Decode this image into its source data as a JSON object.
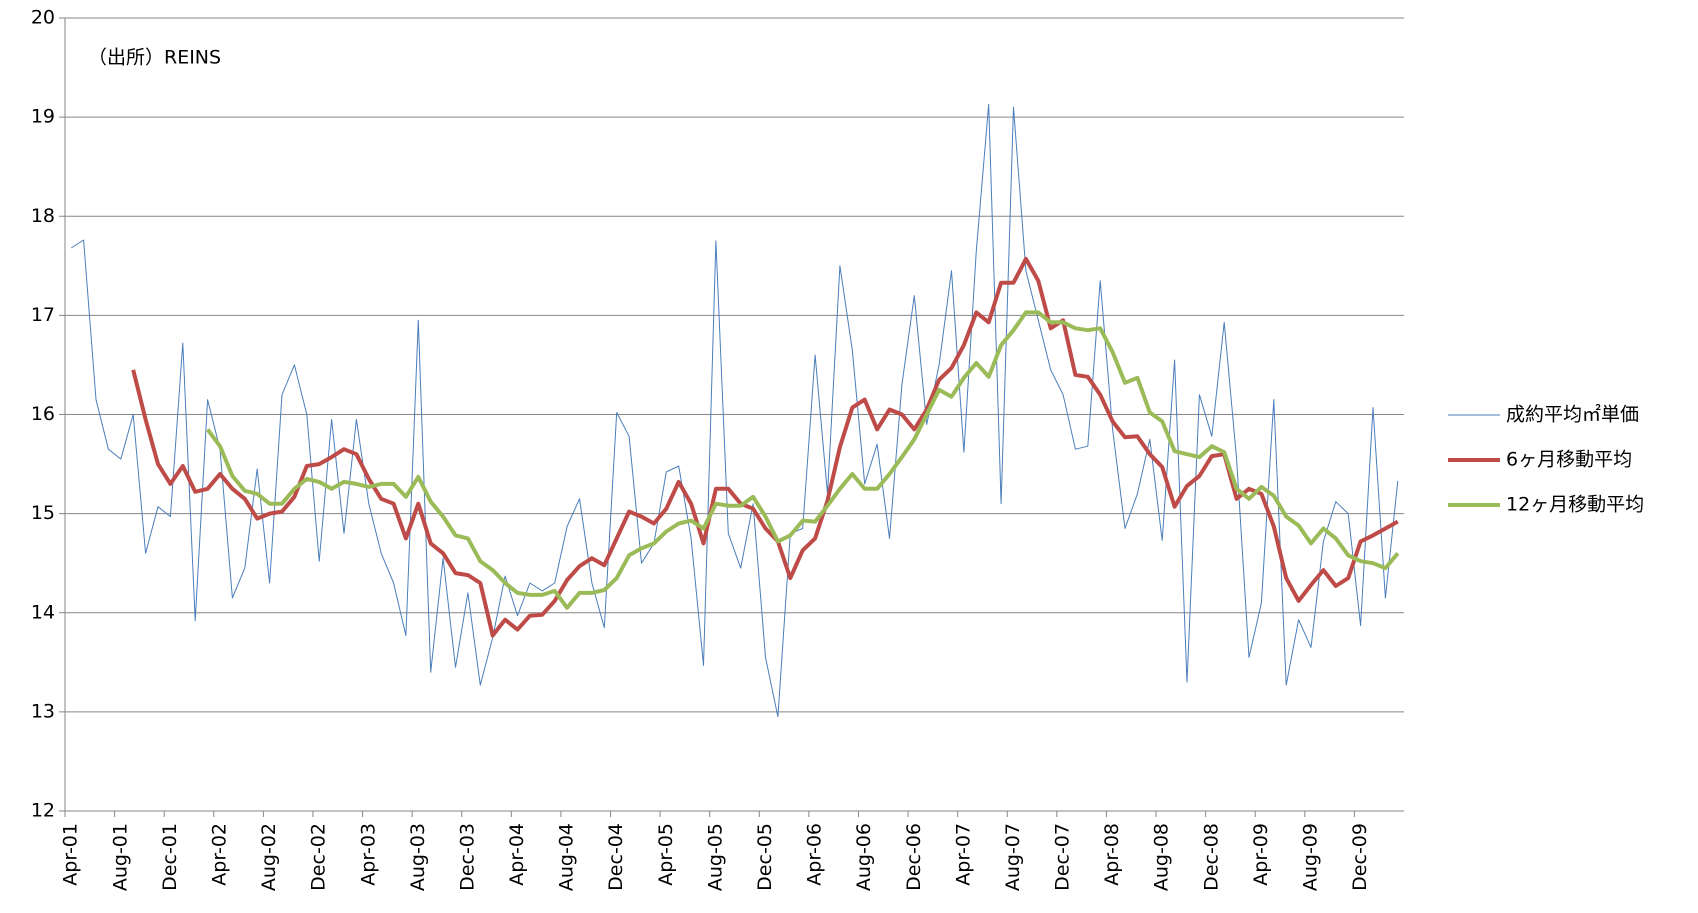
{
  "chart_data": {
    "type": "line",
    "annotation": "（出所）REINS",
    "categories": [
      "Apr-01",
      null,
      null,
      null,
      "Aug-01",
      null,
      null,
      null,
      "Dec-01",
      null,
      null,
      null,
      "Apr-02",
      null,
      null,
      null,
      "Aug-02",
      null,
      null,
      null,
      "Dec-02",
      null,
      null,
      null,
      "Apr-03",
      null,
      null,
      null,
      "Aug-03",
      null,
      null,
      null,
      "Dec-03",
      null,
      null,
      null,
      "Apr-04",
      null,
      null,
      null,
      "Aug-04",
      null,
      null,
      null,
      "Dec-04",
      null,
      null,
      null,
      "Apr-05",
      null,
      null,
      null,
      "Aug-05",
      null,
      null,
      null,
      "Dec-05",
      null,
      null,
      null,
      "Apr-06",
      null,
      null,
      null,
      "Aug-06",
      null,
      null,
      null,
      "Dec-06",
      null,
      null,
      null,
      "Apr-07",
      null,
      null,
      null,
      "Aug-07",
      null,
      null,
      null,
      "Dec-07",
      null,
      null,
      null,
      "Apr-08",
      null,
      null,
      null,
      "Aug-08",
      null,
      null,
      null,
      "Dec-08",
      null,
      null,
      null,
      "Apr-09",
      null,
      null,
      null,
      "Aug-09",
      null,
      null,
      null,
      "Dec-09",
      null,
      null,
      null
    ],
    "series": [
      {
        "name": "成約平均㎡単価",
        "color": "#4a7ebb",
        "width": 1,
        "values": [
          17.68,
          17.76,
          16.15,
          15.65,
          15.55,
          16.0,
          14.6,
          15.07,
          14.97,
          16.72,
          13.92,
          16.15,
          15.65,
          14.15,
          14.45,
          15.45,
          14.3,
          16.2,
          16.5,
          16.0,
          14.52,
          15.95,
          14.8,
          15.95,
          15.1,
          14.6,
          14.3,
          13.77,
          16.95,
          13.4,
          14.55,
          13.45,
          14.2,
          13.27,
          13.75,
          14.37,
          13.97,
          14.3,
          14.22,
          14.3,
          14.87,
          15.15,
          14.3,
          13.85,
          16.02,
          15.78,
          14.5,
          14.7,
          15.42,
          15.48,
          14.75,
          13.47,
          17.75,
          14.8,
          14.45,
          15.1,
          13.55,
          12.95,
          14.8,
          14.85,
          16.6,
          15.2,
          17.5,
          16.65,
          15.3,
          15.7,
          14.75,
          16.3,
          17.2,
          15.9,
          16.5,
          17.45,
          15.62,
          17.65,
          19.13,
          15.1,
          19.1,
          17.45,
          16.95,
          16.45,
          16.2,
          15.65,
          15.68,
          17.35,
          15.85,
          14.85,
          15.2,
          15.75,
          14.73,
          16.55,
          13.3,
          16.2,
          15.78,
          16.93,
          15.55,
          13.55,
          14.1,
          16.15,
          13.27,
          13.93,
          13.65,
          14.72,
          15.12,
          15.0,
          13.87,
          16.07,
          14.15,
          15.33
        ]
      },
      {
        "name": "6ヶ月移動平均",
        "color": "#be4b48",
        "width": 4,
        "values": [
          null,
          null,
          null,
          null,
          null,
          16.45,
          15.95,
          15.5,
          15.3,
          15.48,
          15.22,
          15.25,
          15.4,
          15.25,
          15.15,
          14.95,
          15.0,
          15.02,
          15.17,
          15.48,
          15.5,
          15.57,
          15.65,
          15.6,
          15.35,
          15.15,
          15.1,
          14.75,
          15.1,
          14.7,
          14.6,
          14.4,
          14.38,
          14.3,
          13.77,
          13.93,
          13.83,
          13.97,
          13.98,
          14.12,
          14.33,
          14.47,
          14.55,
          14.48,
          14.75,
          15.02,
          14.97,
          14.9,
          15.05,
          15.32,
          15.1,
          14.7,
          15.25,
          15.25,
          15.1,
          15.05,
          14.85,
          14.72,
          14.35,
          14.63,
          14.75,
          15.13,
          15.67,
          16.07,
          16.15,
          15.85,
          16.05,
          16.0,
          15.85,
          16.05,
          16.35,
          16.47,
          16.7,
          17.03,
          16.93,
          17.33,
          17.33,
          17.57,
          17.35,
          16.87,
          16.95,
          16.4,
          16.38,
          16.2,
          15.93,
          15.77,
          15.78,
          15.6,
          15.47,
          15.07,
          15.28,
          15.38,
          15.58,
          15.6,
          15.15,
          15.25,
          15.2,
          14.87,
          14.35,
          14.12,
          14.28,
          14.43,
          14.27,
          14.35,
          14.72,
          14.78,
          14.85,
          14.92
        ]
      },
      {
        "name": "12ヶ月移動平均",
        "color": "#9bbb59",
        "width": 4,
        "values": [
          null,
          null,
          null,
          null,
          null,
          null,
          null,
          null,
          null,
          null,
          null,
          15.85,
          15.68,
          15.38,
          15.23,
          15.2,
          15.1,
          15.1,
          15.25,
          15.35,
          15.32,
          15.25,
          15.32,
          15.3,
          15.27,
          15.3,
          15.3,
          15.17,
          15.37,
          15.12,
          14.97,
          14.78,
          14.75,
          14.52,
          14.43,
          14.3,
          14.2,
          14.18,
          14.18,
          14.22,
          14.05,
          14.2,
          14.2,
          14.23,
          14.35,
          14.58,
          14.65,
          14.7,
          14.82,
          14.9,
          14.93,
          14.85,
          15.1,
          15.08,
          15.08,
          15.17,
          14.97,
          14.72,
          14.78,
          14.93,
          14.92,
          15.08,
          15.25,
          15.4,
          15.25,
          15.25,
          15.4,
          15.57,
          15.75,
          16.0,
          16.25,
          16.18,
          16.37,
          16.52,
          16.38,
          16.7,
          16.85,
          17.03,
          17.03,
          16.93,
          16.93,
          16.87,
          16.85,
          16.87,
          16.63,
          16.32,
          16.37,
          16.02,
          15.93,
          15.63,
          15.6,
          15.57,
          15.68,
          15.62,
          15.25,
          15.15,
          15.27,
          15.18,
          14.97,
          14.88,
          14.7,
          14.85,
          14.75,
          14.58,
          14.52,
          14.5,
          14.45,
          14.6
        ]
      }
    ],
    "ylim": [
      12,
      20
    ],
    "yticks": [
      12,
      13,
      14,
      15,
      16,
      17,
      18,
      19,
      20
    ],
    "grid": true,
    "legend": "right"
  }
}
